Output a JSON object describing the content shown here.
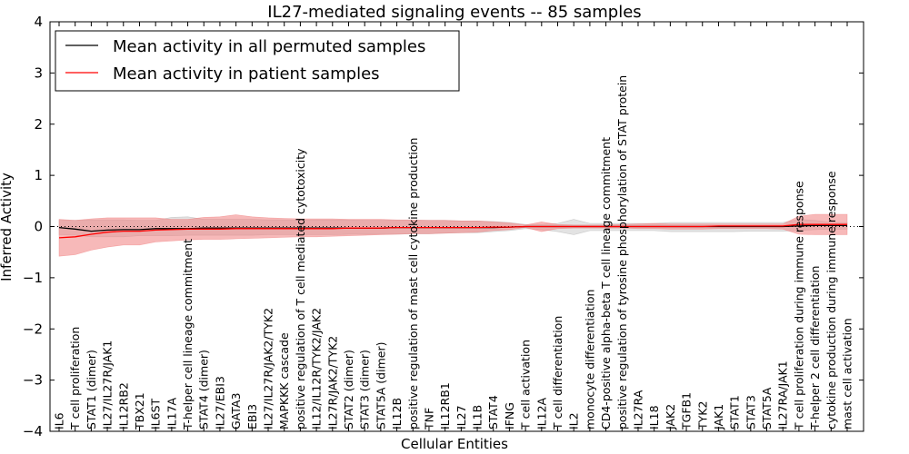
{
  "chart_data": {
    "type": "line",
    "title": "IL27-mediated signaling events -- 85 samples",
    "xlabel": "Cellular Entities",
    "ylabel": "Inferred Activity",
    "ylim": [
      -4,
      4
    ],
    "yticks": [
      -4,
      -3,
      -2,
      -1,
      0,
      1,
      2,
      3,
      4
    ],
    "categories": [
      "IL6",
      "T cell proliferation",
      "STAT1 (dimer)",
      "IL27/IL27R/JAK1",
      "IL12RB2",
      "TBX21",
      "IL6ST",
      "IL17A",
      "T-helper cell lineage commitment",
      "STAT4 (dimer)",
      "IL27/EBI3",
      "GATA3",
      "EBI3",
      "IL27/IL27R/JAK2/TYK2",
      "MAPKKK cascade",
      "positive regulation of T cell mediated cytotoxicity",
      "IL12/IL12R/TYK2/JAK2",
      "IL27R/JAK2/TYK2",
      "STAT2 (dimer)",
      "STAT3 (dimer)",
      "STAT5A (dimer)",
      "IL12B",
      "positive regulation of mast cell cytokine production",
      "TNF",
      "IL12RB1",
      "IL27",
      "IL1B",
      "STAT4",
      "IFNG",
      "T cell activation",
      "IL12A",
      "T cell differentiation",
      "IL2",
      "monocyte differentiation",
      "CD4-positive alpha-beta T cell lineage commitment",
      "positive regulation of tyrosine phosphorylation of STAT protein",
      "IL27RA",
      "IL18",
      "JAK2",
      "TGFB1",
      "TYK2",
      "JAK1",
      "STAT1",
      "STAT3",
      "STAT5A",
      "IL27RA/JAK1",
      "T cell proliferation during immune response",
      "T-helper 2 cell differentiation",
      "cytokine production during immune response",
      "mast cell activation"
    ],
    "series": [
      {
        "name": "Mean activity in all permuted samples",
        "color": "#000000",
        "values": [
          -0.02,
          -0.05,
          -0.09,
          -0.07,
          -0.06,
          -0.06,
          -0.04,
          -0.04,
          -0.04,
          -0.03,
          -0.03,
          -0.03,
          -0.03,
          -0.03,
          -0.03,
          -0.03,
          -0.03,
          -0.03,
          -0.03,
          -0.03,
          -0.03,
          -0.02,
          -0.02,
          -0.02,
          -0.02,
          -0.02,
          -0.02,
          -0.02,
          -0.01,
          0.0,
          0.0,
          0.0,
          0.0,
          0.0,
          0.0,
          0.0,
          0.0,
          0.0,
          0.0,
          0.0,
          0.0,
          0.0,
          0.0,
          0.0,
          0.0,
          0.0,
          0.01,
          0.02,
          0.02,
          0.02
        ],
        "band_low": [
          -0.16,
          -0.17,
          -0.2,
          -0.2,
          -0.2,
          -0.18,
          -0.18,
          -0.18,
          -0.17,
          -0.17,
          -0.17,
          -0.17,
          -0.17,
          -0.16,
          -0.16,
          -0.16,
          -0.16,
          -0.16,
          -0.15,
          -0.15,
          -0.15,
          -0.15,
          -0.14,
          -0.14,
          -0.13,
          -0.12,
          -0.12,
          -0.1,
          -0.08,
          -0.04,
          -0.06,
          -0.1,
          -0.16,
          -0.08,
          -0.08,
          -0.08,
          -0.08,
          -0.08,
          -0.1,
          -0.1,
          -0.1,
          -0.1,
          -0.1,
          -0.09,
          -0.09,
          -0.09,
          -0.08,
          -0.06,
          -0.05,
          -0.05
        ],
        "band_high": [
          0.12,
          0.12,
          0.13,
          0.13,
          0.13,
          0.12,
          0.12,
          0.18,
          0.19,
          0.14,
          0.14,
          0.14,
          0.14,
          0.13,
          0.13,
          0.13,
          0.13,
          0.13,
          0.13,
          0.12,
          0.12,
          0.12,
          0.12,
          0.12,
          0.12,
          0.11,
          0.11,
          0.1,
          0.08,
          0.04,
          0.04,
          0.06,
          0.14,
          0.06,
          0.06,
          0.06,
          0.06,
          0.06,
          0.08,
          0.08,
          0.08,
          0.08,
          0.08,
          0.08,
          0.08,
          0.08,
          0.14,
          0.12,
          0.08,
          0.08
        ]
      },
      {
        "name": "Mean activity in patient samples",
        "color": "#ff0000",
        "values": [
          -0.22,
          -0.2,
          -0.15,
          -0.11,
          -0.09,
          -0.09,
          -0.07,
          -0.06,
          -0.05,
          -0.05,
          -0.05,
          -0.04,
          -0.04,
          -0.04,
          -0.04,
          -0.04,
          -0.04,
          -0.04,
          -0.03,
          -0.03,
          -0.03,
          -0.02,
          -0.02,
          -0.02,
          -0.02,
          -0.02,
          -0.02,
          -0.01,
          -0.01,
          0.0,
          0.0,
          0.0,
          0.0,
          0.0,
          0.0,
          0.0,
          0.0,
          0.0,
          0.0,
          0.0,
          0.0,
          0.01,
          0.01,
          0.01,
          0.01,
          0.01,
          0.04,
          0.04,
          0.04,
          0.04
        ],
        "band_low": [
          -0.58,
          -0.55,
          -0.46,
          -0.4,
          -0.36,
          -0.36,
          -0.3,
          -0.28,
          -0.26,
          -0.25,
          -0.25,
          -0.24,
          -0.23,
          -0.22,
          -0.21,
          -0.2,
          -0.2,
          -0.19,
          -0.18,
          -0.17,
          -0.16,
          -0.15,
          -0.14,
          -0.14,
          -0.13,
          -0.12,
          -0.11,
          -0.08,
          -0.06,
          -0.02,
          -0.1,
          -0.04,
          -0.03,
          -0.03,
          -0.03,
          -0.03,
          -0.04,
          -0.04,
          -0.05,
          -0.05,
          -0.05,
          -0.04,
          -0.04,
          -0.04,
          -0.04,
          -0.05,
          -0.15,
          -0.16,
          -0.16,
          -0.16
        ],
        "band_high": [
          0.14,
          0.12,
          0.15,
          0.17,
          0.17,
          0.17,
          0.17,
          0.14,
          0.14,
          0.18,
          0.19,
          0.23,
          0.19,
          0.17,
          0.16,
          0.15,
          0.15,
          0.15,
          0.14,
          0.14,
          0.14,
          0.13,
          0.13,
          0.12,
          0.12,
          0.11,
          0.11,
          0.09,
          0.07,
          0.03,
          0.09,
          0.04,
          0.03,
          0.03,
          0.03,
          0.04,
          0.05,
          0.06,
          0.05,
          0.05,
          0.05,
          0.05,
          0.05,
          0.05,
          0.05,
          0.05,
          0.2,
          0.24,
          0.24,
          0.24
        ]
      }
    ],
    "band_colors": {
      "permuted": "#b0b0b0",
      "patient": "#f08080"
    },
    "legend_position": "top-left",
    "zero_line": "dotted"
  }
}
